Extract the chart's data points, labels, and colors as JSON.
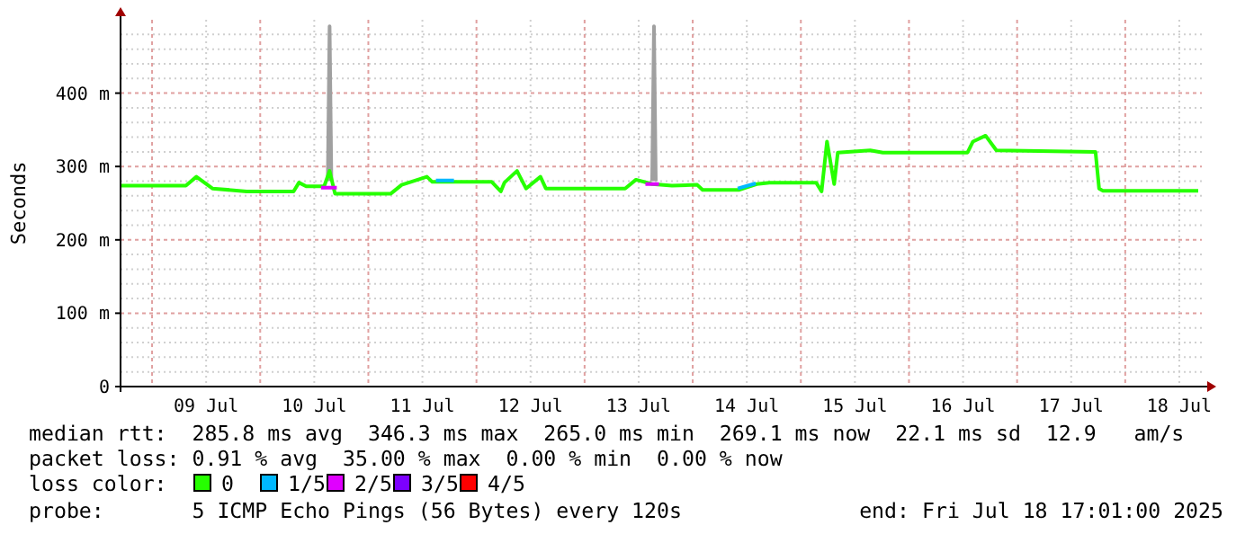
{
  "chart_data": {
    "type": "line",
    "ylabel": "Seconds",
    "legend_title": "loss color:",
    "legend": "bottom",
    "grid": true,
    "marker": "none",
    "line_style": "solid",
    "xlim": [
      "2025-07-08T17:00",
      "2025-07-18T17:00"
    ],
    "ylim": [
      0,
      500
    ],
    "yticks": [
      0,
      {
        "value": 20,
        "label": null
      },
      {
        "value": 40,
        "label": null
      },
      {
        "value": 60,
        "label": null
      },
      {
        "value": 80,
        "label": null
      },
      {
        "value": 100,
        "label": "100 m"
      },
      {
        "value": 120,
        "label": null
      },
      {
        "value": 140,
        "label": null
      },
      {
        "value": 160,
        "label": null
      },
      {
        "value": 180,
        "label": null
      },
      {
        "value": 200,
        "label": "200 m"
      },
      {
        "value": 220,
        "label": null
      },
      {
        "value": 240,
        "label": null
      },
      {
        "value": 260,
        "label": null
      },
      {
        "value": 280,
        "label": null
      },
      {
        "value": 300,
        "label": "300 m"
      },
      {
        "value": 320,
        "label": null
      },
      {
        "value": 340,
        "label": null
      },
      {
        "value": 360,
        "label": null
      },
      {
        "value": 380,
        "label": null
      },
      {
        "value": 400,
        "label": "400 m"
      },
      {
        "value": 420,
        "label": null
      },
      {
        "value": 440,
        "label": null
      },
      {
        "value": 460,
        "label": null
      },
      {
        "value": 480,
        "label": null
      }
    ],
    "xticks": [
      {
        "value": "2025-07-09T00:00",
        "label": null
      },
      {
        "value": "2025-07-09T12:00",
        "label": "09 Jul"
      },
      {
        "value": "2025-07-10T00:00",
        "label": null
      },
      {
        "value": "2025-07-10T12:00",
        "label": "10 Jul"
      },
      {
        "value": "2025-07-11T00:00",
        "label": null
      },
      {
        "value": "2025-07-11T12:00",
        "label": "11 Jul"
      },
      {
        "value": "2025-07-12T00:00",
        "label": null
      },
      {
        "value": "2025-07-12T12:00",
        "label": "12 Jul"
      },
      {
        "value": "2025-07-13T00:00",
        "label": null
      },
      {
        "value": "2025-07-13T12:00",
        "label": "13 Jul"
      },
      {
        "value": "2025-07-14T00:00",
        "label": null
      },
      {
        "value": "2025-07-14T12:00",
        "label": "14 Jul"
      },
      {
        "value": "2025-07-15T00:00",
        "label": null
      },
      {
        "value": "2025-07-15T12:00",
        "label": "15 Jul"
      },
      {
        "value": "2025-07-16T00:00",
        "label": null
      },
      {
        "value": "2025-07-16T12:00",
        "label": "16 Jul"
      },
      {
        "value": "2025-07-17T00:00",
        "label": null
      },
      {
        "value": "2025-07-17T12:00",
        "label": "17 Jul"
      },
      {
        "value": "2025-07-18T00:00",
        "label": null
      },
      {
        "value": "2025-07-18T12:00",
        "label": "18 Jul"
      }
    ],
    "series": [
      {
        "color": "#a0a0a0",
        "x": [
          "2025-07-10T15:00",
          "2025-07-10T15:24",
          "2025-07-10T15:48",
          "2025-07-13T14:36",
          "2025-07-13T15:00",
          "2025-07-13T15:24",
          "2025-07-13T15:48"
        ],
        "values": [
          280,
          491,
          280,
          null,
          280,
          491,
          280
        ]
      },
      {
        "name": "0",
        "color": "#26ff00",
        "x": [
          "2025-07-08T17:00",
          "2025-07-09T07:30",
          "2025-07-09T09:50",
          "2025-07-09T13:24",
          "2025-07-09T21:00",
          "2025-07-10T07:24",
          "2025-07-10T08:36",
          "2025-07-10T10:12",
          "2025-07-10T14:12",
          "2025-07-10T15:24",
          "2025-07-10T16:36",
          "2025-07-10T18:12",
          "2025-07-11T05:00",
          "2025-07-11T07:24",
          "2025-07-11T13:00",
          "2025-07-11T14:12",
          "2025-07-12T03:24",
          "2025-07-12T05:24",
          "2025-07-12T06:12",
          "2025-07-12T09:00",
          "2025-07-12T11:00",
          "2025-07-12T14:12",
          "2025-07-12T15:24",
          "2025-07-12T18:12",
          "2025-07-13T09:00",
          "2025-07-13T11:24",
          "2025-07-13T15:00",
          "2025-07-13T19:24",
          "2025-07-14T01:00",
          "2025-07-14T02:12",
          "2025-07-14T10:12",
          "2025-07-14T14:12",
          "2025-07-14T17:00",
          "2025-07-15T03:24",
          "2025-07-15T04:36",
          "2025-07-15T05:48",
          "2025-07-15T07:24",
          "2025-07-15T08:12",
          "2025-07-15T15:24",
          "2025-07-15T18:12",
          "2025-07-16T13:00",
          "2025-07-16T14:12",
          "2025-07-16T17:00",
          "2025-07-16T19:24",
          "2025-07-17T17:24",
          "2025-07-17T18:12",
          "2025-07-17T19:00",
          "2025-07-18T16:12"
        ],
        "values": [
          274,
          274,
          286,
          270,
          266,
          266,
          278,
          273,
          273,
          294,
          263,
          263,
          263,
          275,
          286,
          279,
          279,
          266,
          278,
          294,
          270,
          286,
          270,
          270,
          270,
          282,
          276,
          274,
          275,
          268,
          268,
          276,
          278,
          278,
          266,
          334,
          276,
          319,
          322,
          319,
          319,
          334,
          342,
          322,
          320,
          270,
          267,
          267
        ]
      },
      {
        "name": "1/5",
        "color": "#00b8ff",
        "x": [
          "2025-07-11T15:00",
          "2025-07-11T19:00",
          "2025-07-12T00:00",
          "2025-07-14T10:00",
          "2025-07-14T14:00"
        ],
        "values": [
          281,
          281,
          null,
          270,
          277
        ]
      },
      {
        "name": "2/5",
        "color": "#e000ff",
        "x": [
          "2025-07-10T13:30",
          "2025-07-10T17:00",
          "2025-07-12T00:00",
          "2025-07-13T13:30",
          "2025-07-13T16:30"
        ],
        "values": [
          271,
          271,
          null,
          276,
          276
        ]
      },
      {
        "name": "3/5",
        "color": "#7c00ff"
      },
      {
        "name": "4/5",
        "color": "#ff0000"
      }
    ],
    "annotations": [
      "median rtt:  285.8 ms avg  346.3 ms max  265.0 ms min  269.1 ms now  22.1 ms sd  12.9   am/s",
      "packet loss: 0.91 % avg  35.00 % max  0.00 % min  0.00 % now",
      "probe:       5 ICMP Echo Pings (56 Bytes) every 120s",
      "end: Fri Jul 18 17:01:00 2025"
    ]
  }
}
